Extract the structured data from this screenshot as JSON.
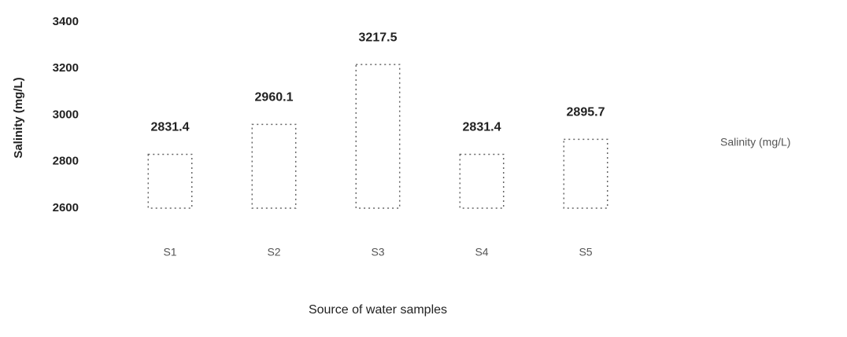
{
  "chart_data": {
    "type": "bar",
    "categories": [
      "S1",
      "S2",
      "S3",
      "S4",
      "S5"
    ],
    "series": [
      {
        "name": "Salinity (mg/L)",
        "color": "#666666",
        "values": [
          2831.4,
          2960.1,
          3217.5,
          2831.4,
          2895.7
        ]
      }
    ],
    "xlabel": "Source of water samples",
    "ylabel": "Salinity (mg/L)",
    "ylim": [
      2600,
      3400
    ],
    "yticks": [
      2600,
      2800,
      3000,
      3200,
      3400
    ],
    "grid": false,
    "legend": "right"
  }
}
